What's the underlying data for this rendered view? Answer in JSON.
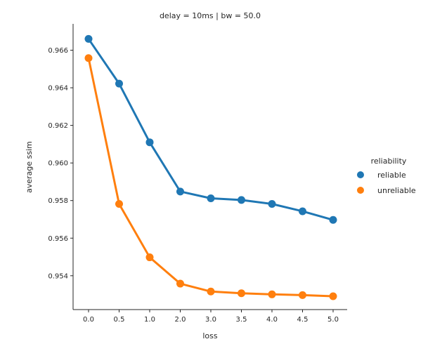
{
  "chart_data": {
    "type": "line",
    "title": "delay = 10ms | bw = 50.0",
    "xlabel": "loss",
    "ylabel": "average ssim",
    "categories": [
      "0.0",
      "0.5",
      "1.0",
      "2.0",
      "3.0",
      "3.5",
      "4.0",
      "4.5",
      "5.0"
    ],
    "yticks": [
      "0.954",
      "0.956",
      "0.958",
      "0.960",
      "0.962",
      "0.964",
      "0.966"
    ],
    "ylim": [
      0.9522,
      0.9674
    ],
    "legend": {
      "title": "reliability",
      "position": "right"
    },
    "series": [
      {
        "name": "reliable",
        "color": "#1f77b4",
        "values": [
          0.9666,
          0.96422,
          0.9611,
          0.95848,
          0.95812,
          0.95803,
          0.95782,
          0.95743,
          0.95697
        ]
      },
      {
        "name": "unreliable",
        "color": "#ff7f0e",
        "values": [
          0.96558,
          0.95782,
          0.95498,
          0.95358,
          0.95316,
          0.95307,
          0.95301,
          0.95297,
          0.95291
        ]
      }
    ]
  }
}
